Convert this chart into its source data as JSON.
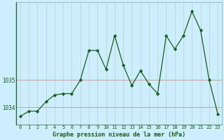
{
  "x": [
    0,
    1,
    2,
    3,
    4,
    5,
    6,
    7,
    8,
    9,
    10,
    11,
    12,
    13,
    14,
    15,
    16,
    17,
    18,
    19,
    20,
    21,
    22,
    23
  ],
  "y": [
    1033.65,
    1033.85,
    1033.85,
    1034.2,
    1034.45,
    1034.5,
    1034.5,
    1035.0,
    1036.1,
    1036.1,
    1035.4,
    1036.65,
    1035.55,
    1034.8,
    1035.35,
    1034.85,
    1034.5,
    1036.65,
    1036.15,
    1036.65,
    1037.55,
    1036.85,
    1035.0,
    1033.75
  ],
  "line_color": "#1a5c1a",
  "marker_color": "#1a5c1a",
  "bg_color": "#cceeff",
  "plot_bg_color": "#cceeff",
  "grid_color_v": "#c0d8d0",
  "grid_color_h": "#c8a0a0",
  "xlabel": "Graphe pression niveau de la mer (hPa)",
  "xlabel_color": "#1a5c1a",
  "tick_color": "#1a5c1a",
  "yticks": [
    1034,
    1035
  ],
  "ylim": [
    1033.35,
    1037.9
  ],
  "xlim": [
    -0.5,
    23.5
  ],
  "xtick_labels": [
    "0",
    "1",
    "2",
    "3",
    "4",
    "5",
    "6",
    "7",
    "8",
    "9",
    "10",
    "11",
    "12",
    "13",
    "14",
    "15",
    "16",
    "17",
    "18",
    "19",
    "20",
    "21",
    "22",
    "23"
  ]
}
